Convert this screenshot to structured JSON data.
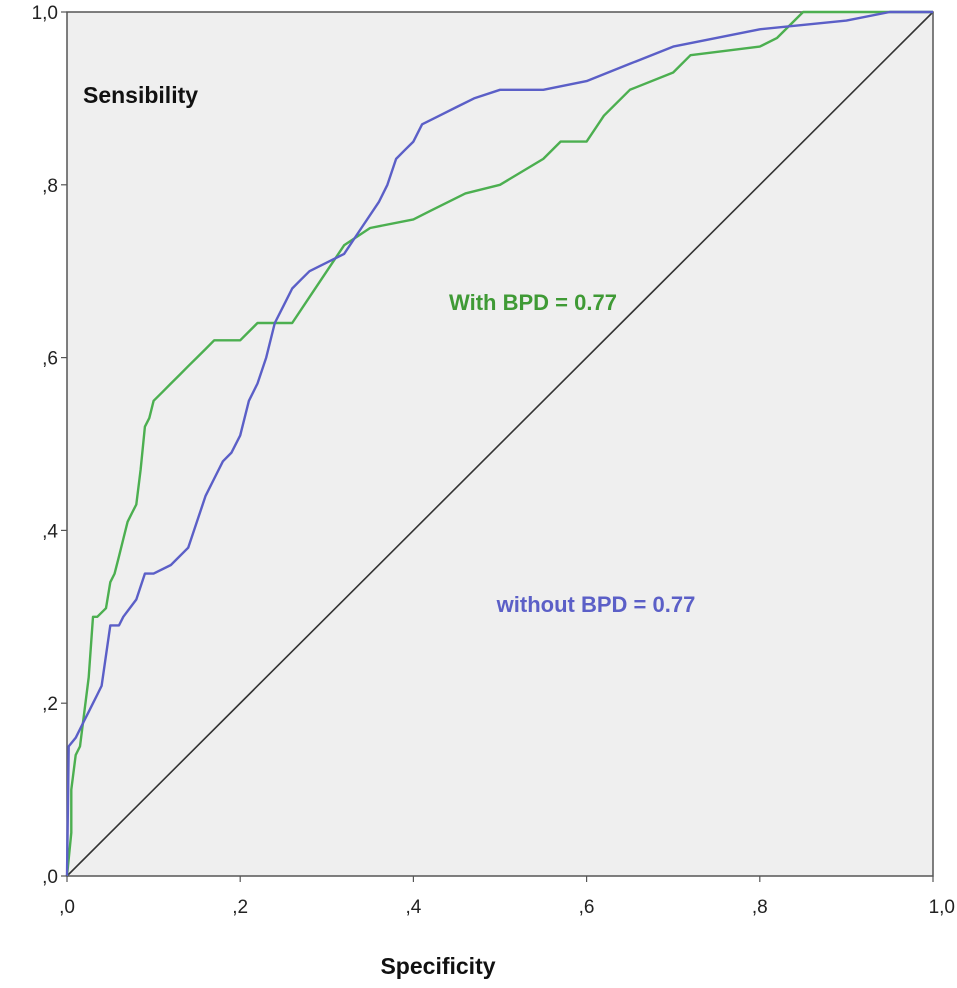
{
  "chart_data": {
    "type": "line",
    "title": "",
    "ylabel": "Sensibility",
    "xlabel": "Specificity",
    "xlim": [
      0,
      1
    ],
    "ylim": [
      0,
      1
    ],
    "x_ticks": [
      0,
      0.2,
      0.4,
      0.6,
      0.8,
      1.0
    ],
    "x_tick_labels": [
      ",0",
      ",2",
      ",4",
      ",6",
      ",8",
      "1,0"
    ],
    "y_ticks": [
      0,
      0.2,
      0.4,
      0.6,
      0.8,
      1.0
    ],
    "y_tick_labels": [
      ",0",
      ",2",
      ",4",
      ",6",
      ",8",
      "1,0"
    ],
    "grid": false,
    "annotations": {
      "with_bpd": "With BPD = 0.77",
      "without_bpd": "without BPD = 0.77"
    },
    "reference_line": {
      "name": "reference diagonal",
      "x": [
        0,
        1
      ],
      "y": [
        0,
        1
      ]
    },
    "series": [
      {
        "name": "With BPD",
        "color": "#4caf50",
        "x": [
          0,
          0.005,
          0.005,
          0.01,
          0.015,
          0.025,
          0.03,
          0.035,
          0.045,
          0.05,
          0.055,
          0.06,
          0.065,
          0.07,
          0.075,
          0.08,
          0.085,
          0.09,
          0.095,
          0.1,
          0.11,
          0.12,
          0.13,
          0.14,
          0.15,
          0.16,
          0.17,
          0.2,
          0.22,
          0.26,
          0.28,
          0.3,
          0.32,
          0.35,
          0.4,
          0.42,
          0.46,
          0.5,
          0.55,
          0.57,
          0.6,
          0.62,
          0.65,
          0.7,
          0.72,
          0.8,
          0.82,
          0.85,
          0.9,
          0.95,
          1.0
        ],
        "y": [
          0,
          0.05,
          0.1,
          0.14,
          0.15,
          0.23,
          0.3,
          0.3,
          0.31,
          0.34,
          0.35,
          0.37,
          0.39,
          0.41,
          0.42,
          0.43,
          0.47,
          0.52,
          0.53,
          0.55,
          0.56,
          0.57,
          0.58,
          0.59,
          0.6,
          0.61,
          0.62,
          0.62,
          0.64,
          0.64,
          0.67,
          0.7,
          0.73,
          0.75,
          0.76,
          0.77,
          0.79,
          0.8,
          0.83,
          0.85,
          0.85,
          0.88,
          0.91,
          0.93,
          0.95,
          0.96,
          0.97,
          1.0,
          1.0,
          1.0,
          1.0
        ]
      },
      {
        "name": "without BPD",
        "color": "#5b5fc7",
        "x": [
          0,
          0.002,
          0.01,
          0.02,
          0.025,
          0.03,
          0.035,
          0.04,
          0.05,
          0.06,
          0.065,
          0.08,
          0.09,
          0.1,
          0.12,
          0.14,
          0.15,
          0.16,
          0.17,
          0.18,
          0.19,
          0.2,
          0.21,
          0.22,
          0.23,
          0.24,
          0.25,
          0.26,
          0.27,
          0.28,
          0.3,
          0.32,
          0.34,
          0.36,
          0.37,
          0.38,
          0.39,
          0.4,
          0.41,
          0.43,
          0.45,
          0.47,
          0.5,
          0.55,
          0.6,
          0.65,
          0.7,
          0.75,
          0.8,
          0.9,
          0.95,
          1.0
        ],
        "y": [
          0,
          0.15,
          0.16,
          0.18,
          0.19,
          0.2,
          0.21,
          0.22,
          0.29,
          0.29,
          0.3,
          0.32,
          0.35,
          0.35,
          0.36,
          0.38,
          0.41,
          0.44,
          0.46,
          0.48,
          0.49,
          0.51,
          0.55,
          0.57,
          0.6,
          0.64,
          0.66,
          0.68,
          0.69,
          0.7,
          0.71,
          0.72,
          0.75,
          0.78,
          0.8,
          0.83,
          0.84,
          0.85,
          0.87,
          0.88,
          0.89,
          0.9,
          0.91,
          0.91,
          0.92,
          0.94,
          0.96,
          0.97,
          0.98,
          0.99,
          1.0,
          1.0
        ]
      }
    ]
  }
}
